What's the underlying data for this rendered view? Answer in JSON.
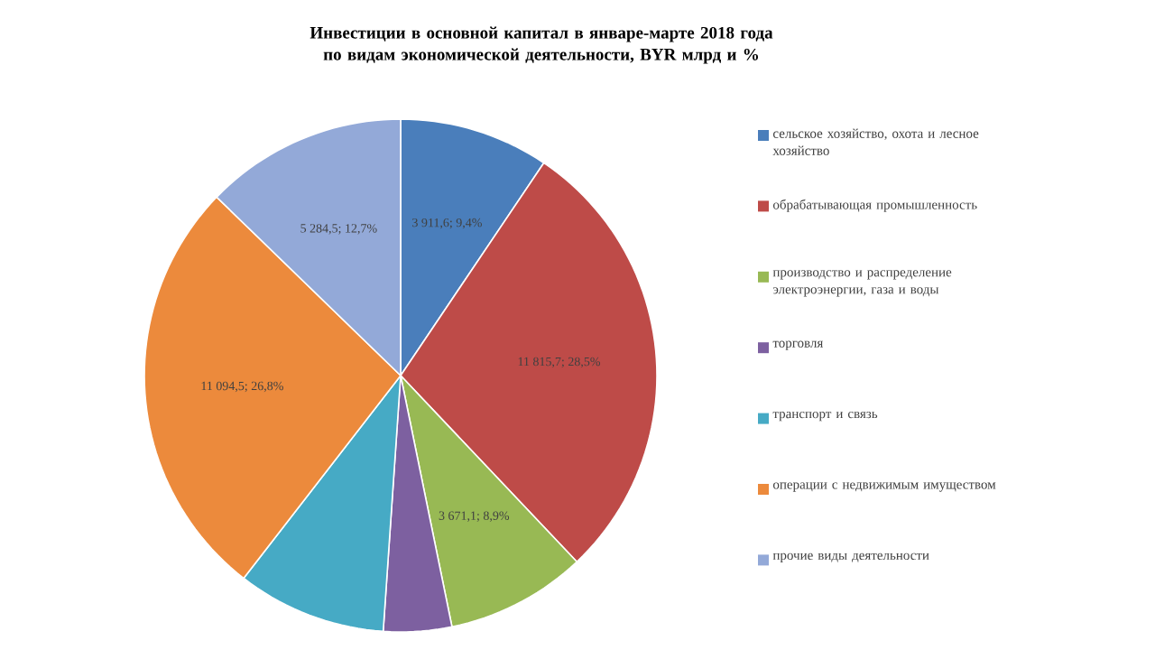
{
  "chart_data": {
    "type": "pie",
    "title": "Инвестиции в основной капитал в январе-марте 2018 года по видам экономической деятельности,  BYR млрд и %",
    "categories": [
      "сельское хозяйство, охота и лесное хозяйство",
      "обрабатывающая промышленность",
      "производство и распределение электроэнергии, газа и воды",
      "торговля",
      "транспорт и связь",
      "операции с недвижимым имуществом",
      "прочие виды деятельности"
    ],
    "values": [
      3911.6,
      11815.7,
      3671.1,
      1780,
      3900,
      11094.5,
      5284.5
    ],
    "value_labels": [
      "3 911,6; 9,4%",
      "11 815,7; 28,5%",
      "3 671,1; 8,9%",
      null,
      null,
      "11 094,5; 26,8%",
      "5 284,5; 12,7%"
    ],
    "colors": [
      "#4a7ebb",
      "#be4b48",
      "#98b954",
      "#7d60a0",
      "#46aac5",
      "#ec8a3c",
      "#93a9d8"
    ],
    "legend": "right"
  }
}
